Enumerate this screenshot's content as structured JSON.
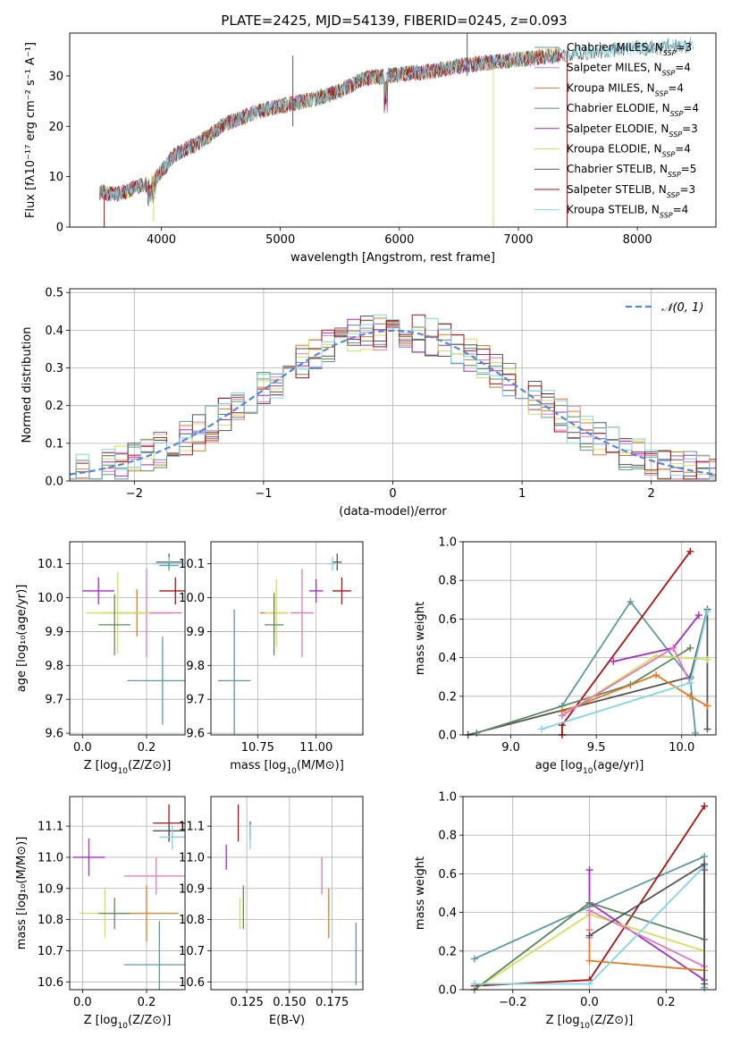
{
  "figure": {
    "title": "PLATE=2425, MJD=54139, FIBERID=0245, z=0.093"
  },
  "model_colors": [
    "#5b9aa0",
    "#e377c2",
    "#e57a1f",
    "#5f8a5f",
    "#a32cc4",
    "#d4e157",
    "#555555",
    "#b01010",
    "#7fd6e6"
  ],
  "chart_data": [
    {
      "id": "spectrum",
      "type": "line",
      "title": "PLATE=2425, MJD=54139, FIBERID=0245, z=0.093",
      "xlabel": "wavelength [Angstrom, rest frame]",
      "ylabel": "Flux [fλ10⁻¹⁷ erg cm⁻² s⁻¹ A⁻¹]",
      "xlim": [
        3230,
        8660
      ],
      "ylim": [
        0,
        38.5
      ],
      "xticks": [
        4000,
        5000,
        6000,
        7000,
        8000
      ],
      "yticks": [
        0,
        10,
        20,
        30
      ],
      "grid": false,
      "legend": "top-right",
      "series": [
        {
          "name": "Chabrier MILES, N$_{SSP}$=3",
          "label_main": "Chabrier MILES, N",
          "label_sub": "SSP",
          "label_tail": "=3"
        },
        {
          "name": "Salpeter MILES, N$_{SSP}$=4",
          "label_main": "Salpeter MILES, N",
          "label_sub": "SSP",
          "label_tail": "=4"
        },
        {
          "name": "Kroupa MILES, N$_{SSP}$=4",
          "label_main": "Kroupa MILES, N",
          "label_sub": "SSP",
          "label_tail": "=4"
        },
        {
          "name": "Chabrier ELODIE, N$_{SSP}$=4",
          "label_main": "Chabrier ELODIE, N",
          "label_sub": "SSP",
          "label_tail": "=4"
        },
        {
          "name": "Salpeter ELODIE, N$_{SSP}$=3",
          "label_main": "Salpeter ELODIE, N",
          "label_sub": "SSP",
          "label_tail": "=3"
        },
        {
          "name": "Kroupa ELODIE, N$_{SSP}$=4",
          "label_main": "Kroupa ELODIE, N",
          "label_sub": "SSP",
          "label_tail": "=4"
        },
        {
          "name": "Chabrier STELIB, N$_{SSP}$=5",
          "label_main": "Chabrier STELIB, N",
          "label_sub": "SSP",
          "label_tail": "=5"
        },
        {
          "name": "Salpeter STELIB, N$_{SSP}$=3",
          "label_main": "Salpeter STELIB, N",
          "label_sub": "SSP",
          "label_tail": "=3"
        },
        {
          "name": "Kroupa STELIB, N$_{SSP}$=4",
          "label_main": "Kroupa STELIB, N",
          "label_sub": "SSP",
          "label_tail": "=4"
        }
      ],
      "continuum": {
        "x": [
          3480,
          3600,
          3700,
          3800,
          3900,
          4000,
          4100,
          4200,
          4300,
          4400,
          4500,
          4700,
          4900,
          5100,
          5300,
          5500,
          5700,
          5900,
          6100,
          6300,
          6500,
          6700,
          6900,
          7100,
          7300,
          7500,
          7700,
          7900,
          8100,
          8300,
          8500
        ],
        "y": [
          7,
          6.5,
          7,
          8,
          8.5,
          11,
          14,
          15.5,
          16.5,
          18,
          20,
          22,
          23.5,
          24.5,
          25.5,
          27,
          29.5,
          30,
          30.5,
          31,
          32,
          32.5,
          33,
          33.5,
          34,
          34.5,
          35,
          35.5,
          35.5,
          36,
          36
        ]
      },
      "spikes": [
        {
          "x": 6790,
          "y0": 0,
          "y1": 32,
          "series": 5
        },
        {
          "x": 7410,
          "y0": 0,
          "y1": 35,
          "series": 7
        },
        {
          "x": 3520,
          "y0": 0,
          "y1": 6,
          "series": 7
        },
        {
          "x": 3935,
          "y0": 1,
          "y1": 8,
          "series": 5
        },
        {
          "x": 5105,
          "y0": 20,
          "y1": 34,
          "series": 6
        },
        {
          "x": 6570,
          "y0": 30,
          "y1": 39,
          "series": 6
        }
      ]
    },
    {
      "id": "residuals",
      "type": "histogram",
      "xlabel": "(data-model)/error",
      "ylabel": "Normed distribution",
      "xlim": [
        -2.5,
        2.5
      ],
      "ylim": [
        0,
        0.51
      ],
      "xticks": [
        -2,
        -1,
        0,
        1,
        2
      ],
      "yticks": [
        0.0,
        0.1,
        0.2,
        0.3,
        0.4,
        0.5
      ],
      "grid": true,
      "legend": "top-right",
      "legend_label": "𝒩(0, 1)",
      "bin_width": 0.1,
      "reference_curve": {
        "name": "N(0,1)",
        "color": "#5588dd",
        "dash": "dashed",
        "mean": 0,
        "sigma": 1
      }
    },
    {
      "id": "age_vs_Z",
      "type": "scatter",
      "xlabel_pre": "Z [log",
      "xlabel_sub": "10",
      "xlabel_post": "(Z/Z⊙)]",
      "ylabel": "age  [log₁₀(age/yr)]",
      "xlim": [
        -0.04,
        0.32
      ],
      "ylim": [
        9.595,
        10.165
      ],
      "xticks": [
        0.0,
        0.2
      ],
      "yticks": [
        9.6,
        9.7,
        9.8,
        9.9,
        10.0,
        10.1
      ],
      "grid": true,
      "points": [
        {
          "x": 0.27,
          "y": 10.105,
          "xerr": 0.04,
          "yerr": 0.025,
          "series": 6
        },
        {
          "x": 0.27,
          "y": 10.1,
          "xerr": 0.05,
          "yerr": 0.02,
          "series": 8
        },
        {
          "x": 0.27,
          "y": 10.095,
          "xerr": 0.03,
          "yerr": 0.01,
          "series": 0
        },
        {
          "x": 0.29,
          "y": 10.02,
          "xerr": 0.05,
          "yerr": 0.04,
          "series": 7
        },
        {
          "x": 0.05,
          "y": 10.02,
          "xerr": 0.05,
          "yerr": 0.04,
          "series": 4
        },
        {
          "x": 0.17,
          "y": 9.955,
          "xerr": 0.11,
          "yerr": 0.07,
          "series": 2
        },
        {
          "x": 0.2,
          "y": 9.955,
          "xerr": 0.11,
          "yerr": 0.13,
          "series": 1
        },
        {
          "x": 0.11,
          "y": 9.955,
          "xerr": 0.1,
          "yerr": 0.12,
          "series": 5
        },
        {
          "x": 0.1,
          "y": 9.92,
          "xerr": 0.05,
          "yerr": 0.09,
          "series": 3
        },
        {
          "x": 0.25,
          "y": 9.755,
          "xerr": 0.11,
          "yerr": 0.13,
          "series": 9
        }
      ]
    },
    {
      "id": "age_vs_mass",
      "type": "scatter",
      "xlabel_pre": "mass [log",
      "xlabel_sub": "10",
      "xlabel_post": "(M/M⊙)]",
      "ylabel": "",
      "xlim": [
        10.55,
        11.2
      ],
      "ylim": [
        9.595,
        10.165
      ],
      "xticks": [
        10.75,
        11.0
      ],
      "yticks": [
        9.6,
        9.7,
        9.8,
        9.9,
        10.0,
        10.1
      ],
      "grid": true,
      "points": [
        {
          "x": 11.09,
          "y": 10.105,
          "xerr": 0.02,
          "yerr": 0.025,
          "series": 6
        },
        {
          "x": 11.07,
          "y": 10.1,
          "xerr": 0.02,
          "yerr": 0.02,
          "series": 8
        },
        {
          "x": 11.11,
          "y": 10.02,
          "xerr": 0.04,
          "yerr": 0.04,
          "series": 7
        },
        {
          "x": 11.0,
          "y": 10.02,
          "xerr": 0.03,
          "yerr": 0.035,
          "series": 4
        },
        {
          "x": 10.82,
          "y": 9.955,
          "xerr": 0.06,
          "yerr": 0.06,
          "series": 2
        },
        {
          "x": 10.94,
          "y": 9.955,
          "xerr": 0.05,
          "yerr": 0.13,
          "series": 1
        },
        {
          "x": 10.83,
          "y": 9.955,
          "xerr": 0.05,
          "yerr": 0.1,
          "series": 5
        },
        {
          "x": 10.82,
          "y": 9.92,
          "xerr": 0.04,
          "yerr": 0.09,
          "series": 3
        },
        {
          "x": 10.65,
          "y": 9.755,
          "xerr": 0.07,
          "yerr": 0.21,
          "series": 9
        }
      ]
    },
    {
      "id": "mass_weight_vs_age",
      "type": "line",
      "xlabel_pre": "age  [log",
      "xlabel_sub": "10",
      "xlabel_post": "(age/yr)]",
      "ylabel": "mass weight",
      "xlim": [
        8.72,
        10.2
      ],
      "ylim": [
        0,
        1
      ],
      "xticks": [
        9.0,
        9.5,
        10.0
      ],
      "yticks": [
        0.0,
        0.2,
        0.4,
        0.6,
        0.8,
        1.0
      ],
      "grid": true,
      "series": [
        {
          "series": 9,
          "x": [
            9.3,
            9.7,
            10.05,
            10.08
          ],
          "y": [
            0.15,
            0.69,
            0.29,
            0.01
          ]
        },
        {
          "series": 7,
          "x": [
            9.3,
            9.3,
            10.05
          ],
          "y": [
            0.0,
            0.05,
            0.95
          ]
        },
        {
          "series": 4,
          "x": [
            9.6,
            9.95,
            10.1
          ],
          "y": [
            0.38,
            0.45,
            0.62
          ]
        },
        {
          "series": 6,
          "x": [
            8.75,
            10.05,
            10.15,
            10.15
          ],
          "y": [
            0.0,
            0.3,
            0.65,
            0.03
          ]
        },
        {
          "series": 3,
          "x": [
            8.8,
            9.7,
            10.05
          ],
          "y": [
            0.01,
            0.26,
            0.45
          ]
        },
        {
          "series": 2,
          "x": [
            9.3,
            9.85,
            10.05,
            10.15
          ],
          "y": [
            0.12,
            0.31,
            0.2,
            0.15
          ]
        },
        {
          "series": 5,
          "x": [
            9.3,
            9.85,
            10.15
          ],
          "y": [
            0.1,
            0.41,
            0.39
          ]
        },
        {
          "series": 1,
          "x": [
            9.3,
            9.95,
            10.05
          ],
          "y": [
            0.1,
            0.45,
            0.27
          ]
        },
        {
          "series": 8,
          "x": [
            9.18,
            10.05,
            10.15
          ],
          "y": [
            0.03,
            0.27,
            0.64
          ]
        }
      ]
    },
    {
      "id": "mass_vs_Z",
      "type": "scatter",
      "xlabel_pre": "Z [log",
      "xlabel_sub": "10",
      "xlabel_post": "(Z/Z⊙)]",
      "ylabel": "mass [log₁₀(M/M⊙)]",
      "xlim": [
        -0.04,
        0.32
      ],
      "ylim": [
        10.575,
        11.195
      ],
      "xticks": [
        0.0,
        0.2
      ],
      "yticks": [
        10.6,
        10.7,
        10.8,
        10.9,
        11.0,
        11.1
      ],
      "grid": true,
      "points": [
        {
          "x": 0.27,
          "y": 11.11,
          "xerr": 0.05,
          "yerr": 0.06,
          "series": 7
        },
        {
          "x": 0.27,
          "y": 11.085,
          "xerr": 0.05,
          "yerr": 0.03,
          "series": 6
        },
        {
          "x": 0.28,
          "y": 11.065,
          "xerr": 0.04,
          "yerr": 0.04,
          "series": 8
        },
        {
          "x": 0.02,
          "y": 11.0,
          "xerr": 0.05,
          "yerr": 0.06,
          "series": 4
        },
        {
          "x": 0.23,
          "y": 10.94,
          "xerr": 0.1,
          "yerr": 0.06,
          "series": 1
        },
        {
          "x": 0.2,
          "y": 10.82,
          "xerr": 0.1,
          "yerr": 0.09,
          "series": 2
        },
        {
          "x": 0.07,
          "y": 10.82,
          "xerr": 0.08,
          "yerr": 0.08,
          "series": 5
        },
        {
          "x": 0.1,
          "y": 10.82,
          "xerr": 0.05,
          "yerr": 0.05,
          "series": 3
        },
        {
          "x": 0.24,
          "y": 10.655,
          "xerr": 0.11,
          "yerr": 0.14,
          "series": 9
        }
      ]
    },
    {
      "id": "mass_vs_ebv",
      "type": "scatter",
      "xlabel": "E(B-V)",
      "ylabel": "",
      "xlim": [
        0.104,
        0.193
      ],
      "ylim": [
        10.575,
        11.195
      ],
      "xticks": [
        0.125,
        0.15,
        0.175
      ],
      "xticklabels": [
        "0.125",
        "0.150",
        "0.175"
      ],
      "yticks": [
        10.6,
        10.7,
        10.8,
        10.9,
        11.0,
        11.1
      ],
      "grid": true,
      "points": [
        {
          "x": 0.12,
          "y": 11.11,
          "xerr": 0.0,
          "yerr": 0.06,
          "series": 7
        },
        {
          "x": 0.127,
          "y": 11.085,
          "xerr": 0.0,
          "yerr": 0.03,
          "series": 6
        },
        {
          "x": 0.127,
          "y": 11.065,
          "xerr": 0.0,
          "yerr": 0.04,
          "series": 8
        },
        {
          "x": 0.113,
          "y": 11.0,
          "xerr": 0.0,
          "yerr": 0.04,
          "series": 4
        },
        {
          "x": 0.169,
          "y": 10.94,
          "xerr": 0.0,
          "yerr": 0.06,
          "series": 1
        },
        {
          "x": 0.173,
          "y": 10.82,
          "xerr": 0.0,
          "yerr": 0.08,
          "series": 2
        },
        {
          "x": 0.121,
          "y": 10.82,
          "xerr": 0.0,
          "yerr": 0.05,
          "series": 5
        },
        {
          "x": 0.123,
          "y": 10.84,
          "xerr": 0.0,
          "yerr": 0.07,
          "series": 3
        },
        {
          "x": 0.189,
          "y": 10.69,
          "xerr": 0.0,
          "yerr": 0.1,
          "series": 9
        }
      ]
    },
    {
      "id": "mass_weight_vs_Z",
      "type": "line",
      "xlabel_pre": "Z [log",
      "xlabel_sub": "10",
      "xlabel_post": "(Z/Z⊙)]",
      "ylabel": "mass weight",
      "xlim": [
        -0.33,
        0.33
      ],
      "ylim": [
        0,
        1
      ],
      "xticks": [
        -0.2,
        0.0,
        0.2
      ],
      "xticklabels": [
        "−0.2",
        "0.0",
        "0.2"
      ],
      "yticks": [
        0.0,
        0.2,
        0.4,
        0.6,
        0.8,
        1.0
      ],
      "grid": true,
      "series": [
        {
          "series": 9,
          "x": [
            -0.3,
            0.0,
            0.3,
            0.3
          ],
          "y": [
            0.16,
            0.43,
            0.69,
            0.01
          ]
        },
        {
          "series": 7,
          "x": [
            -0.3,
            0.0,
            0.3
          ],
          "y": [
            0.02,
            0.05,
            0.95
          ]
        },
        {
          "series": 4,
          "x": [
            0.0,
            0.0,
            0.3,
            0.3
          ],
          "y": [
            0.62,
            0.45,
            0.05,
            0.62
          ]
        },
        {
          "series": 5,
          "x": [
            -0.3,
            0.0,
            0.3
          ],
          "y": [
            0.0,
            0.39,
            0.2
          ]
        },
        {
          "series": 3,
          "x": [
            -0.3,
            0.0,
            0.3
          ],
          "y": [
            0.0,
            0.45,
            0.26
          ]
        },
        {
          "series": 2,
          "x": [
            0.0,
            0.0,
            0.3
          ],
          "y": [
            0.31,
            0.15,
            0.1
          ]
        },
        {
          "series": 1,
          "x": [
            0.0,
            0.0,
            0.3
          ],
          "y": [
            0.27,
            0.41,
            0.12
          ]
        },
        {
          "series": 8,
          "x": [
            -0.3,
            0.0,
            0.3
          ],
          "y": [
            0.03,
            0.03,
            0.64
          ]
        },
        {
          "series": 6,
          "x": [
            0.0,
            0.3,
            0.3
          ],
          "y": [
            0.28,
            0.65,
            0.03
          ]
        }
      ]
    }
  ]
}
